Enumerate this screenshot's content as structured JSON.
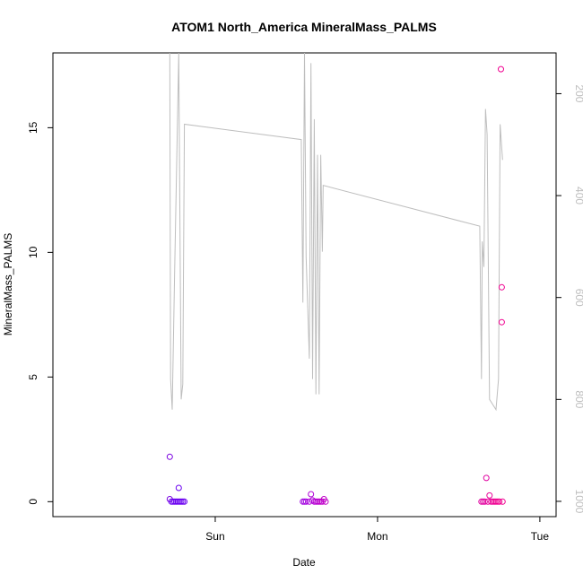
{
  "chart_data": {
    "type": "scatter",
    "title": "ATOM1 North_America MineralMass_PALMS",
    "xlabel": "Date",
    "ylabel": "MineralMass_PALMS",
    "x_ticks": [
      "Sun",
      "Mon",
      "Tue"
    ],
    "y_ticks": [
      "0",
      "5",
      "10",
      "15"
    ],
    "y_right_ticks": [
      "200",
      "400",
      "600",
      "800",
      "1000"
    ],
    "ylim": [
      -0.6,
      18
    ],
    "y_right_lim": [
      1030,
      120
    ],
    "grid": false,
    "series": [
      {
        "kind": "points",
        "points": [
          {
            "x": 0.72,
            "y": 1.8,
            "color": "#7a00e0"
          },
          {
            "x": 0.72,
            "y": 0.1,
            "color": "#7a00e0"
          },
          {
            "x": 0.73,
            "y": 0.0,
            "color": "#6a00f0"
          },
          {
            "x": 0.74,
            "y": 0.0,
            "color": "#6a00f0"
          },
          {
            "x": 0.75,
            "y": 0.0,
            "color": "#6a00f0"
          },
          {
            "x": 0.76,
            "y": 0.0,
            "color": "#6a00f0"
          },
          {
            "x": 0.77,
            "y": 0.0,
            "color": "#6a00f0"
          },
          {
            "x": 0.78,
            "y": 0.0,
            "color": "#6a00f0"
          },
          {
            "x": 0.775,
            "y": 0.55,
            "color": "#6a00f0"
          },
          {
            "x": 0.79,
            "y": 0.0,
            "color": "#6a00f0"
          },
          {
            "x": 0.8,
            "y": 0.0,
            "color": "#6a00f0"
          },
          {
            "x": 0.81,
            "y": 0.0,
            "color": "#6a00f0"
          },
          {
            "x": 1.54,
            "y": 0.0,
            "color": "#a000e0"
          },
          {
            "x": 1.55,
            "y": 0.0,
            "color": "#a000e0"
          },
          {
            "x": 1.56,
            "y": 0.0,
            "color": "#a000e0"
          },
          {
            "x": 1.58,
            "y": 0.0,
            "color": "#b000d8"
          },
          {
            "x": 1.59,
            "y": 0.3,
            "color": "#b000d8"
          },
          {
            "x": 1.6,
            "y": 0.05,
            "color": "#b000d8"
          },
          {
            "x": 1.61,
            "y": 0.0,
            "color": "#b000d8"
          },
          {
            "x": 1.62,
            "y": 0.0,
            "color": "#b800d0"
          },
          {
            "x": 1.63,
            "y": 0.0,
            "color": "#b800d0"
          },
          {
            "x": 1.64,
            "y": 0.0,
            "color": "#b800d0"
          },
          {
            "x": 1.65,
            "y": 0.0,
            "color": "#c000c8"
          },
          {
            "x": 1.66,
            "y": 0.0,
            "color": "#c000c8"
          },
          {
            "x": 1.67,
            "y": 0.1,
            "color": "#c000c8"
          },
          {
            "x": 1.68,
            "y": 0.0,
            "color": "#c000c8"
          },
          {
            "x": 2.64,
            "y": 0.0,
            "color": "#e000a0"
          },
          {
            "x": 2.65,
            "y": 0.0,
            "color": "#e000a0"
          },
          {
            "x": 2.66,
            "y": 0.0,
            "color": "#e000a0"
          },
          {
            "x": 2.67,
            "y": 0.95,
            "color": "#e000a0"
          },
          {
            "x": 2.68,
            "y": 0.0,
            "color": "#e80098"
          },
          {
            "x": 2.69,
            "y": 0.25,
            "color": "#e80098"
          },
          {
            "x": 2.7,
            "y": 0.0,
            "color": "#e80098"
          },
          {
            "x": 2.71,
            "y": 0.0,
            "color": "#e80098"
          },
          {
            "x": 2.72,
            "y": 0.0,
            "color": "#f00090"
          },
          {
            "x": 2.73,
            "y": 0.0,
            "color": "#f00090"
          },
          {
            "x": 2.74,
            "y": 0.0,
            "color": "#f00090"
          },
          {
            "x": 2.75,
            "y": 0.0,
            "color": "#f00090"
          },
          {
            "x": 2.76,
            "y": 17.35,
            "color": "#f00090"
          },
          {
            "x": 2.765,
            "y": 8.6,
            "color": "#f00090"
          },
          {
            "x": 2.765,
            "y": 7.2,
            "color": "#f00090"
          },
          {
            "x": 2.77,
            "y": 0.0,
            "color": "#f00090"
          }
        ]
      },
      {
        "kind": "line",
        "axis": "right",
        "color": "#bebebe",
        "points": [
          {
            "x": 0.72,
            "y": 120
          },
          {
            "x": 0.725,
            "y": 760
          },
          {
            "x": 0.735,
            "y": 820
          },
          {
            "x": 0.75,
            "y": 550
          },
          {
            "x": 0.775,
            "y": 120
          },
          {
            "x": 0.79,
            "y": 800
          },
          {
            "x": 0.8,
            "y": 770
          },
          {
            "x": 0.81,
            "y": 260
          },
          {
            "x": 1.53,
            "y": 290
          },
          {
            "x": 1.54,
            "y": 610
          },
          {
            "x": 1.55,
            "y": 120
          },
          {
            "x": 1.56,
            "y": 520
          },
          {
            "x": 1.57,
            "y": 620
          },
          {
            "x": 1.58,
            "y": 720
          },
          {
            "x": 1.59,
            "y": 140
          },
          {
            "x": 1.6,
            "y": 760
          },
          {
            "x": 1.61,
            "y": 250
          },
          {
            "x": 1.62,
            "y": 790
          },
          {
            "x": 1.63,
            "y": 320
          },
          {
            "x": 1.64,
            "y": 790
          },
          {
            "x": 1.65,
            "y": 320
          },
          {
            "x": 1.66,
            "y": 510
          },
          {
            "x": 1.665,
            "y": 380
          },
          {
            "x": 2.63,
            "y": 460
          },
          {
            "x": 2.64,
            "y": 760
          },
          {
            "x": 2.645,
            "y": 490
          },
          {
            "x": 2.655,
            "y": 540
          },
          {
            "x": 2.665,
            "y": 230
          },
          {
            "x": 2.675,
            "y": 280
          },
          {
            "x": 2.69,
            "y": 800
          },
          {
            "x": 2.71,
            "y": 810
          },
          {
            "x": 2.73,
            "y": 820
          },
          {
            "x": 2.745,
            "y": 760
          },
          {
            "x": 2.755,
            "y": 260
          },
          {
            "x": 2.77,
            "y": 330
          }
        ]
      }
    ]
  }
}
